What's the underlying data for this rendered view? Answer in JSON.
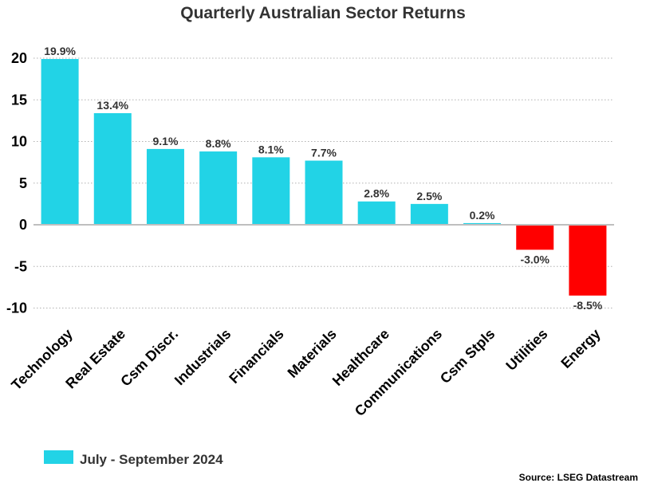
{
  "chart_data": {
    "type": "bar",
    "title": "Quarterly Australian Sector Returns",
    "categories": [
      "Technology",
      "Real Estate",
      "Csm Discr.",
      "Industrials",
      "Financials",
      "Materials",
      "Healthcare",
      "Communications",
      "Csm Stpls",
      "Utilities",
      "Energy"
    ],
    "series": [
      {
        "name": "July - September 2024",
        "values": [
          19.9,
          13.4,
          9.1,
          8.8,
          8.1,
          7.7,
          2.8,
          2.5,
          0.2,
          -3.0,
          -8.5
        ],
        "data_labels": [
          "19.9%",
          "13.4%",
          "9.1%",
          "8.8%",
          "8.1%",
          "7.7%",
          "2.8%",
          "2.5%",
          "0.2%",
          "-3.0%",
          "-8.5%"
        ]
      }
    ],
    "yticks": [
      20,
      15,
      10,
      5,
      0,
      -5,
      -10
    ],
    "ytick_labels": [
      "20",
      "15",
      "10",
      "5",
      "0",
      "-5",
      "-10"
    ],
    "ylim": [
      -10,
      20
    ],
    "grid": true,
    "legend_position": "bottom-left",
    "source_note": "Source: LSEG Datastream",
    "colors": {
      "positive": "#22d3e6",
      "negative": "#ff0000",
      "grid": "#b0b0b0",
      "axis": "#bfbfbf"
    }
  }
}
